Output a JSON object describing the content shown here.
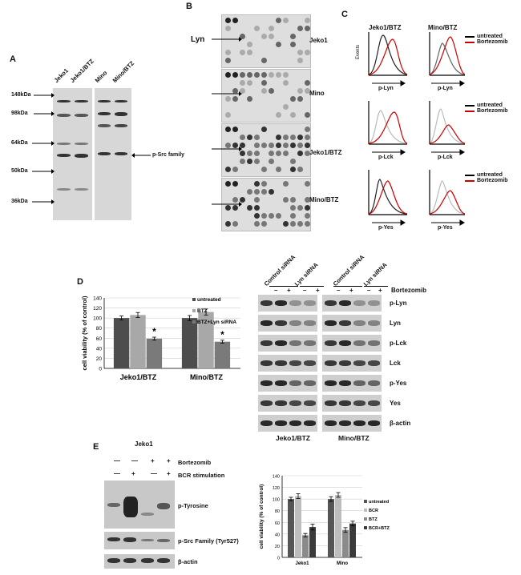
{
  "panels": {
    "A": {
      "letter": "A",
      "lanes": [
        "Jeko1",
        "Jeko1/BTZ",
        "Mino",
        "Mino/BTZ"
      ],
      "markers": [
        "148kDa",
        "98kDa",
        "64kDa",
        "50kDa",
        "36kDa"
      ],
      "annotation": "p-Src family"
    },
    "B": {
      "letter": "B",
      "lyn_label": "Lyn",
      "arrays": [
        "Jeko1",
        "Mino",
        "Jeko1/BTZ",
        "Mino/BTZ"
      ]
    },
    "C": {
      "letter": "C",
      "columns": [
        "Jeko1/BTZ",
        "Mino/BTZ"
      ],
      "rows": [
        "p-Lyn",
        "p-Lck",
        "p-Yes"
      ],
      "legend": [
        "untreated",
        "Bortezomib"
      ],
      "ylabel_small": "Events"
    },
    "D": {
      "letter": "D",
      "wb_headers": [
        "Control siRNA",
        "Lyn siRNA",
        "Control siRNA",
        "Lyn siRNA"
      ],
      "signs": [
        "–",
        "+",
        "–",
        "+",
        "–",
        "+",
        "–",
        "+"
      ],
      "bortezomib": "Bortezomib",
      "wb_rows": [
        "p-Lyn",
        "Lyn",
        "p-Lck",
        "Lck",
        "p-Yes",
        "Yes",
        "β-actin"
      ],
      "wb_groups": [
        "Jeko1/BTZ",
        "Mino/BTZ"
      ]
    },
    "E": {
      "letter": "E",
      "title": "Jeko1",
      "row_labels": [
        "Bortezomib",
        "BCR stimulation"
      ],
      "bortezomib_signs": [
        "—",
        "—",
        "+",
        "+"
      ],
      "bcr_signs": [
        "—",
        "+",
        "—",
        "+"
      ],
      "blot_labels": [
        "p-Tyrosine",
        "p-Src Family (Tyr527)",
        "β-actin"
      ]
    }
  },
  "chart_data": [
    {
      "type": "bar",
      "panel": "D",
      "categories": [
        "Jeko1/BTZ",
        "Mino/BTZ"
      ],
      "series": [
        {
          "name": "untreated",
          "values": [
            100,
            100
          ]
        },
        {
          "name": "BTZ",
          "values": [
            106,
            112
          ]
        },
        {
          "name": "BTZ+Lyn siRNA",
          "values": [
            59,
            53
          ]
        }
      ],
      "errors": [
        [
          4,
          5
        ],
        [
          5,
          6
        ],
        [
          3,
          3
        ]
      ],
      "significance": [
        "*",
        "*"
      ],
      "ylabel": "cell viability (% of control)",
      "ylim": [
        0,
        140
      ],
      "yticks": [
        "0",
        "20",
        "40",
        "60",
        "80",
        "100",
        "120",
        "140"
      ],
      "colors": [
        "#4d4d4d",
        "#a8a8a8",
        "#7a7a7a"
      ],
      "legend_position": "top-right"
    },
    {
      "type": "bar",
      "panel": "E",
      "categories": [
        "Jeko1",
        "Mino"
      ],
      "series": [
        {
          "name": "untreated",
          "values": [
            100,
            100
          ]
        },
        {
          "name": "BCR",
          "values": [
            105,
            107
          ]
        },
        {
          "name": "BTZ",
          "values": [
            38,
            47
          ]
        },
        {
          "name": "BCR+BTZ",
          "values": [
            52,
            58
          ]
        }
      ],
      "errors": [
        [
          3,
          4
        ],
        [
          4,
          4
        ],
        [
          3,
          4
        ],
        [
          5,
          4
        ]
      ],
      "ylabel": "cell viability (% of control)",
      "ylim": [
        0,
        140
      ],
      "yticks": [
        "0",
        "20",
        "40",
        "60",
        "80",
        "100",
        "120",
        "140"
      ],
      "colors": [
        "#555555",
        "#bdbdbd",
        "#8a8a8a",
        "#3a3a3a"
      ],
      "legend_position": "right"
    }
  ]
}
